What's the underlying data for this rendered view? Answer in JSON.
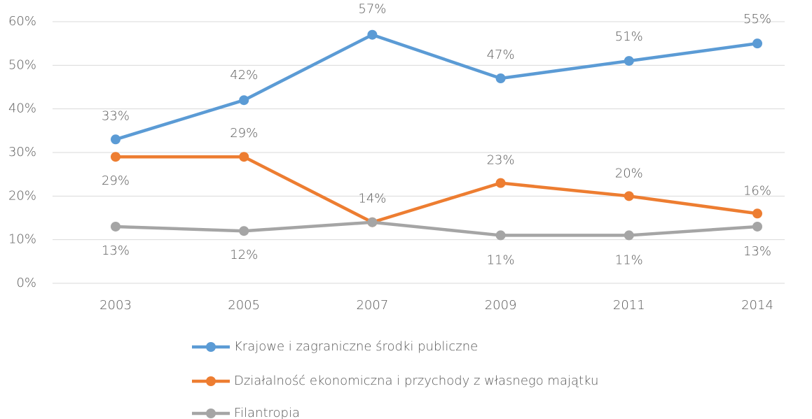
{
  "chart_data": {
    "type": "line",
    "categories": [
      "2003",
      "2005",
      "2007",
      "2009",
      "2011",
      "2014"
    ],
    "series": [
      {
        "name": "Krajowe i zagraniczne środki publiczne",
        "color": "#5b9bd5",
        "values": [
          33,
          42,
          57,
          47,
          51,
          55
        ],
        "value_labels": [
          "33%",
          "42%",
          "57%",
          "47%",
          "51%",
          "55%"
        ]
      },
      {
        "name": "Działalność ekonomiczna i przychody z własnego majątku",
        "color": "#ed7d31",
        "values": [
          29,
          29,
          14,
          23,
          20,
          16
        ],
        "value_labels": [
          "29%",
          "29%",
          "14%",
          "23%",
          "20%",
          "16%"
        ]
      },
      {
        "name": "Filantropia",
        "color": "#a5a5a5",
        "values": [
          13,
          12,
          14,
          11,
          11,
          13
        ],
        "value_labels": [
          "13%",
          "12%",
          null,
          "11%",
          "11%",
          "13%"
        ]
      }
    ],
    "ylim": [
      0,
      60
    ],
    "yticks": [
      {
        "value": 0,
        "label": "0%"
      },
      {
        "value": 10,
        "label": "10%"
      },
      {
        "value": 20,
        "label": "20%"
      },
      {
        "value": 30,
        "label": "30%"
      },
      {
        "value": 40,
        "label": "40%"
      },
      {
        "value": 50,
        "label": "50%"
      },
      {
        "value": 60,
        "label": "60%"
      }
    ],
    "grid": true,
    "legend": "bottom"
  }
}
